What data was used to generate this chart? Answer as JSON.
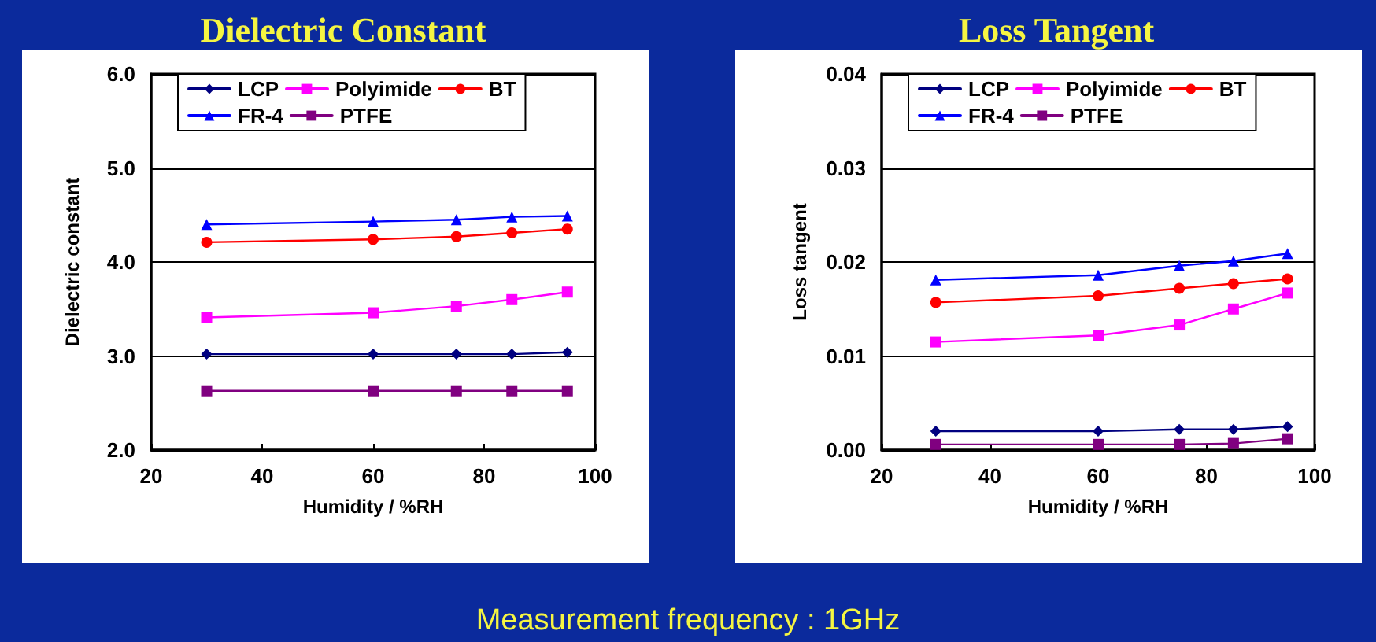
{
  "chart_data": [
    {
      "type": "line",
      "title": "Dielectric Constant",
      "xlabel": "Humidity / %RH",
      "ylabel": "Dielectric constant",
      "x": [
        30,
        60,
        75,
        85,
        95
      ],
      "series": [
        {
          "name": "LCP",
          "color": "#000080",
          "marker": "diamond",
          "values": [
            3.02,
            3.02,
            3.02,
            3.02,
            3.04
          ]
        },
        {
          "name": "Polyimide",
          "color": "#ff00ff",
          "marker": "square",
          "values": [
            3.41,
            3.46,
            3.53,
            3.6,
            3.68
          ]
        },
        {
          "name": "BT",
          "color": "#ff0000",
          "marker": "circle",
          "values": [
            4.21,
            4.24,
            4.27,
            4.31,
            4.35
          ]
        },
        {
          "name": "FR-4",
          "color": "#0000ff",
          "marker": "triangle",
          "values": [
            4.4,
            4.43,
            4.45,
            4.48,
            4.49
          ]
        },
        {
          "name": "PTFE",
          "color": "#800080",
          "marker": "square",
          "values": [
            2.63,
            2.63,
            2.63,
            2.63,
            2.63
          ]
        }
      ],
      "xlim": [
        20,
        100
      ],
      "xticks": [
        20,
        40,
        60,
        80,
        100
      ],
      "ylim": [
        2,
        6
      ],
      "yticks": [
        {
          "value": 2,
          "label": "2.0"
        },
        {
          "value": 3,
          "label": "3.0"
        },
        {
          "value": 4,
          "label": "4.0"
        },
        {
          "value": 5,
          "label": "5.0"
        },
        {
          "value": 6,
          "label": "6.0"
        }
      ],
      "grid": "y",
      "legend": "top",
      "annotations": [
        "Measurement frequency : 1GHz"
      ]
    },
    {
      "type": "line",
      "title": "Loss Tangent",
      "xlabel": "Humidity / %RH",
      "ylabel": "Loss tangent",
      "x": [
        30,
        60,
        75,
        85,
        95
      ],
      "series": [
        {
          "name": "LCP",
          "color": "#000080",
          "marker": "diamond",
          "values": [
            0.002,
            0.002,
            0.0022,
            0.0022,
            0.0025
          ]
        },
        {
          "name": "Polyimide",
          "color": "#ff00ff",
          "marker": "square",
          "values": [
            0.0115,
            0.0122,
            0.0133,
            0.015,
            0.0167
          ]
        },
        {
          "name": "BT",
          "color": "#ff0000",
          "marker": "circle",
          "values": [
            0.0157,
            0.0164,
            0.0172,
            0.0177,
            0.0182
          ]
        },
        {
          "name": "FR-4",
          "color": "#0000ff",
          "marker": "triangle",
          "values": [
            0.0181,
            0.0186,
            0.0196,
            0.0201,
            0.0209
          ]
        },
        {
          "name": "PTFE",
          "color": "#800080",
          "marker": "square",
          "values": [
            0.0006,
            0.0006,
            0.0006,
            0.0007,
            0.0012
          ]
        }
      ],
      "xlim": [
        20,
        100
      ],
      "xticks": [
        20,
        40,
        60,
        80,
        100
      ],
      "ylim": [
        0,
        0.04
      ],
      "yticks": [
        {
          "value": 0,
          "label": "0.00"
        },
        {
          "value": 0.01,
          "label": "0.01"
        },
        {
          "value": 0.02,
          "label": "0.02"
        },
        {
          "value": 0.03,
          "label": "0.03"
        },
        {
          "value": 0.04,
          "label": "0.04"
        }
      ],
      "grid": "y",
      "legend": "top"
    }
  ]
}
